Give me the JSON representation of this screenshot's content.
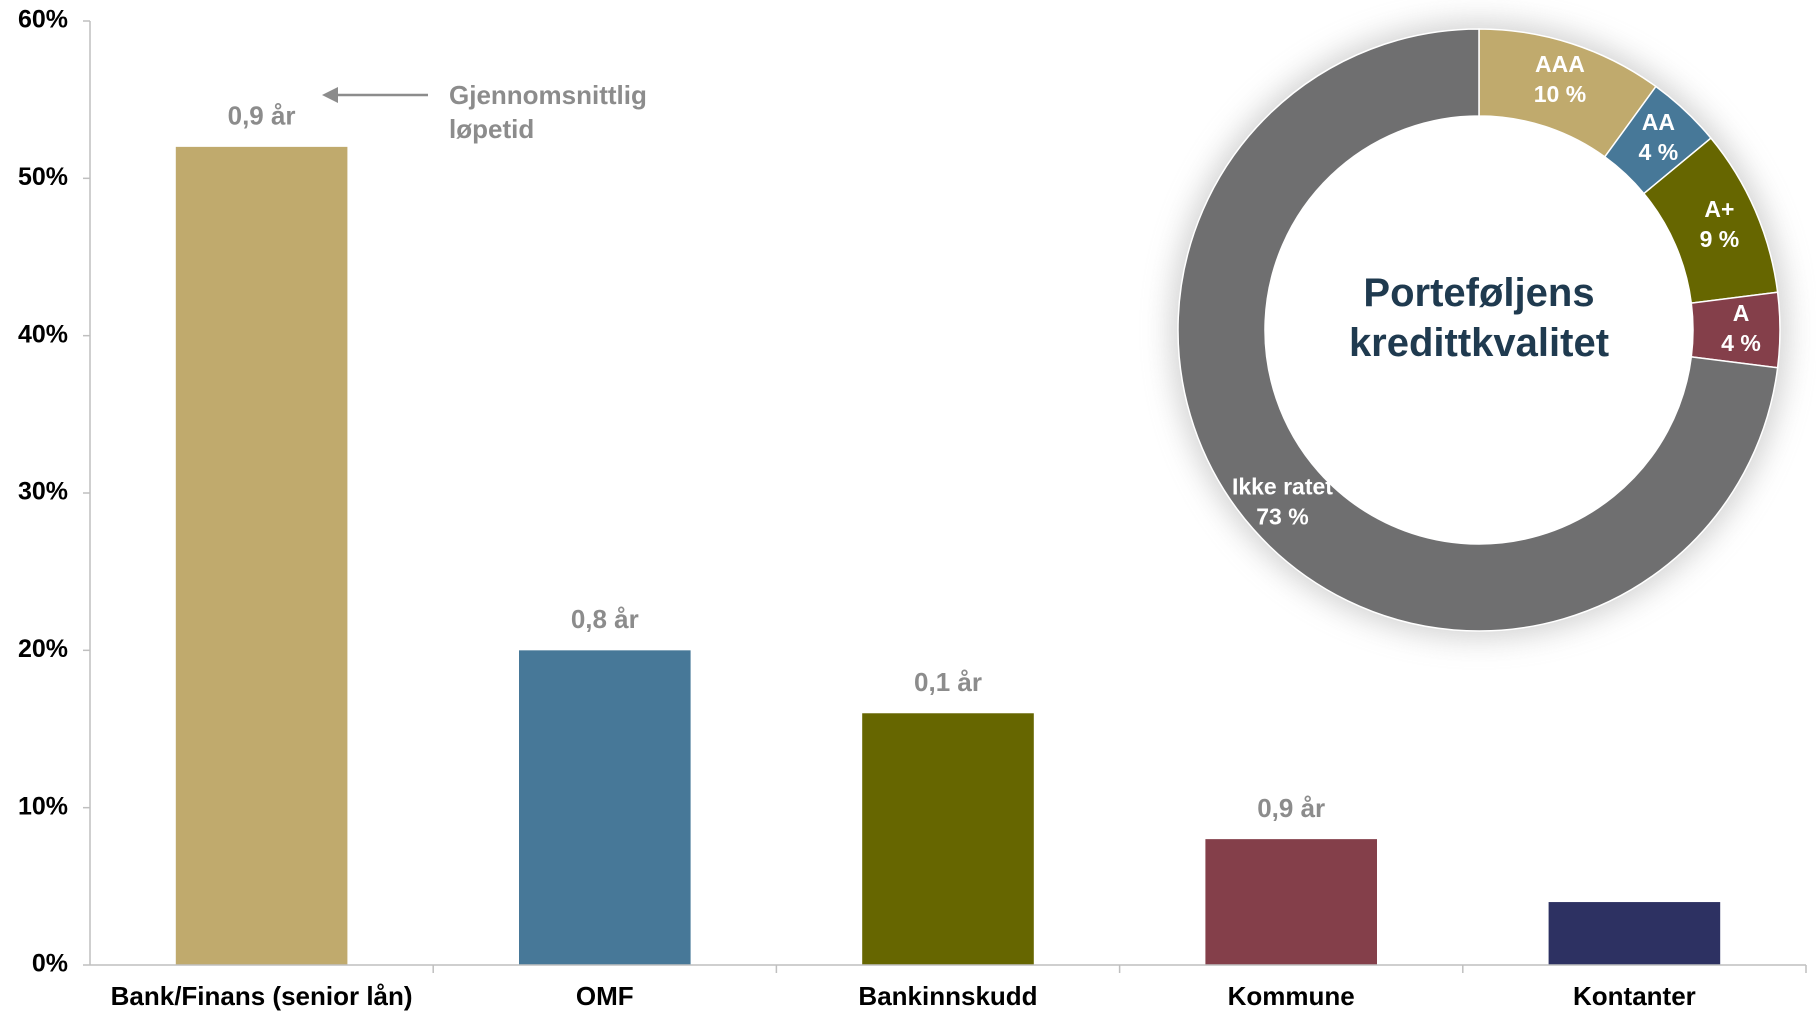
{
  "chart_data": [
    {
      "type": "bar",
      "categories": [
        "Bank/Finans (senior lån)",
        "OMF",
        "Bankinnskudd",
        "Kommune",
        "Kontanter"
      ],
      "values": [
        52,
        20,
        16,
        8,
        4
      ],
      "colors": [
        "#c0aa6d",
        "#477898",
        "#666600",
        "#843f4a",
        "#2d3162"
      ],
      "bar_annotations": [
        "0,9 år",
        "0,8 år",
        "0,1 år",
        "0,9 år",
        null
      ],
      "annotation": "Gjennomsnittlig løpetid",
      "ylim": [
        0,
        60
      ],
      "yticks": [
        {
          "value": 0,
          "label": "0%"
        },
        {
          "value": 10,
          "label": "10%"
        },
        {
          "value": 20,
          "label": "20%"
        },
        {
          "value": 30,
          "label": "30%"
        },
        {
          "value": 40,
          "label": "40%"
        },
        {
          "value": 50,
          "label": "50%"
        },
        {
          "value": 60,
          "label": "60%"
        }
      ],
      "grid": false
    },
    {
      "type": "donut",
      "title": "Porteføljens kredittkvalitet",
      "categories": [
        "AAA",
        "AA",
        "A+",
        "A",
        "Ikke ratet"
      ],
      "values": [
        10,
        4,
        9,
        4,
        73
      ],
      "value_labels": [
        "10 %",
        "4 %",
        "9 %",
        "4 %",
        "73 %"
      ],
      "colors": [
        "#c0aa6d",
        "#477898",
        "#666600",
        "#843f4a",
        "#6f6f70"
      ]
    }
  ]
}
